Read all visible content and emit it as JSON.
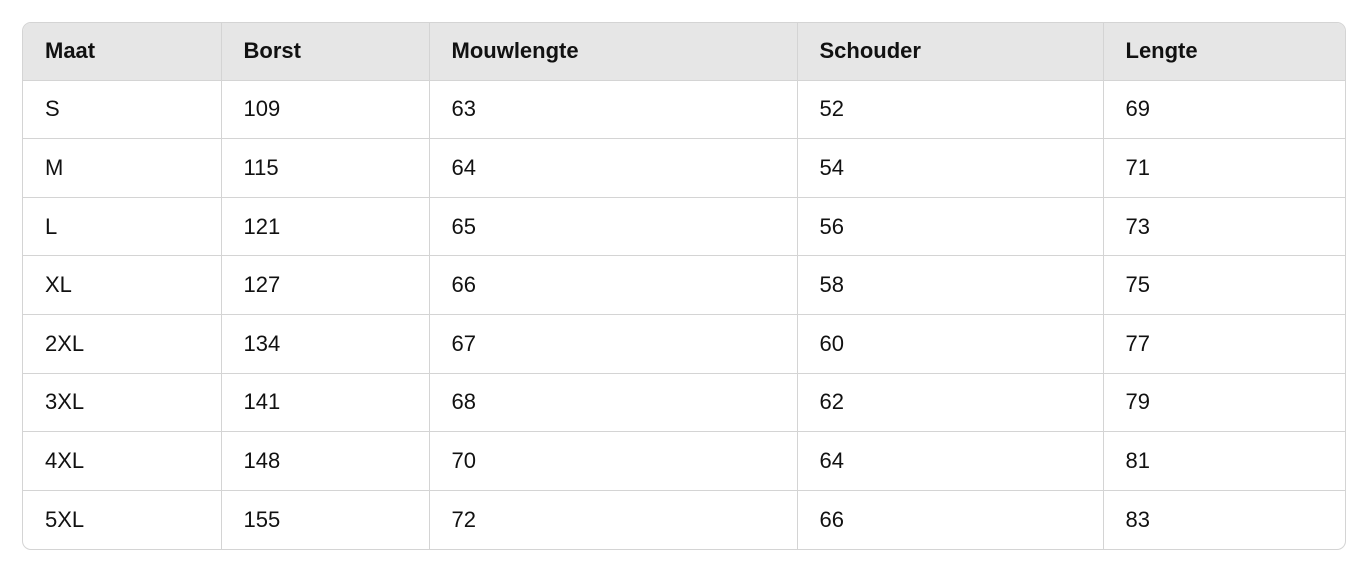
{
  "table": {
    "headers": [
      "Maat",
      "Borst",
      "Mouwlengte",
      "Schouder",
      "Lengte"
    ],
    "rows": [
      [
        "S",
        "109",
        "63",
        "52",
        "69"
      ],
      [
        "M",
        "115",
        "64",
        "54",
        "71"
      ],
      [
        "L",
        "121",
        "65",
        "56",
        "73"
      ],
      [
        "XL",
        "127",
        "66",
        "58",
        "75"
      ],
      [
        "2XL",
        "134",
        "67",
        "60",
        "77"
      ],
      [
        "3XL",
        "141",
        "68",
        "62",
        "79"
      ],
      [
        "4XL",
        "148",
        "70",
        "64",
        "81"
      ],
      [
        "5XL",
        "155",
        "72",
        "66",
        "83"
      ]
    ]
  }
}
